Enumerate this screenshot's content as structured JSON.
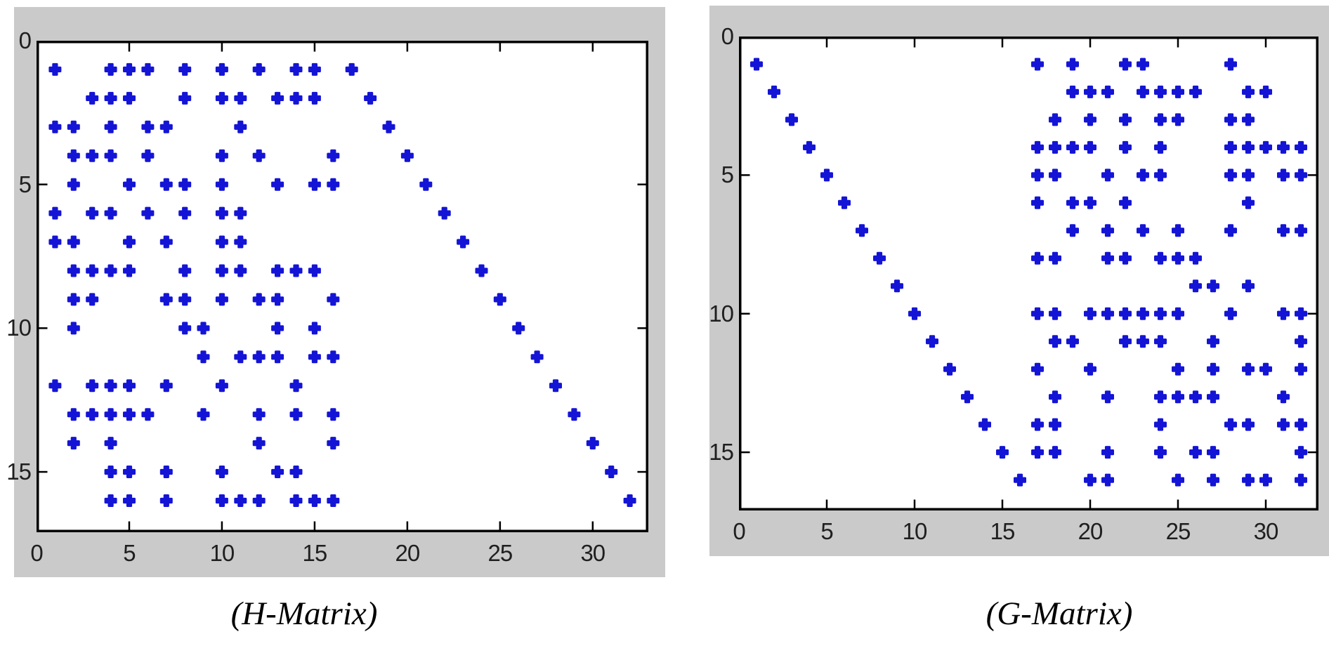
{
  "colors": {
    "marker": "#1414d6",
    "panel_background": "#cacaca",
    "plot_background": "#ffffff",
    "axis_line": "#000000",
    "tick_label": "#1f1f1f",
    "title": "#000000"
  },
  "titles": {
    "left": "(H-Matrix)",
    "right": "(G-Matrix)"
  },
  "chart_data": [
    {
      "type": "scatter",
      "title": "(H-Matrix)",
      "marker": "asterisk",
      "marker_color": "#1414d6",
      "xlabel": "",
      "ylabel": "",
      "xlim": [
        0,
        33
      ],
      "ylim": [
        0,
        17.1
      ],
      "y_axis_inverted": true,
      "grid": false,
      "legend": "none",
      "matrix_rows": 16,
      "matrix_cols": 32,
      "xticks": [
        0,
        5,
        10,
        15,
        20,
        25,
        30
      ],
      "yticks": [
        0,
        5,
        10,
        15
      ],
      "rows": [
        {
          "row": 1,
          "cols": [
            1,
            4,
            5,
            6,
            8,
            10,
            12,
            14,
            15,
            17
          ]
        },
        {
          "row": 2,
          "cols": [
            3,
            4,
            5,
            8,
            10,
            11,
            13,
            14,
            15,
            18
          ]
        },
        {
          "row": 3,
          "cols": [
            1,
            2,
            4,
            6,
            7,
            11,
            19
          ]
        },
        {
          "row": 4,
          "cols": [
            2,
            3,
            4,
            6,
            10,
            12,
            16,
            20
          ]
        },
        {
          "row": 5,
          "cols": [
            2,
            5,
            7,
            8,
            10,
            13,
            15,
            16,
            21
          ]
        },
        {
          "row": 6,
          "cols": [
            1,
            3,
            4,
            6,
            8,
            10,
            11,
            22
          ]
        },
        {
          "row": 7,
          "cols": [
            1,
            2,
            5,
            7,
            10,
            11,
            23
          ]
        },
        {
          "row": 8,
          "cols": [
            2,
            3,
            4,
            5,
            8,
            10,
            11,
            13,
            14,
            15,
            24
          ]
        },
        {
          "row": 9,
          "cols": [
            2,
            3,
            7,
            8,
            10,
            12,
            13,
            16,
            25
          ]
        },
        {
          "row": 10,
          "cols": [
            2,
            8,
            9,
            13,
            15,
            26
          ]
        },
        {
          "row": 11,
          "cols": [
            9,
            11,
            12,
            13,
            15,
            16,
            27
          ]
        },
        {
          "row": 12,
          "cols": [
            1,
            3,
            4,
            5,
            7,
            10,
            14,
            28
          ]
        },
        {
          "row": 13,
          "cols": [
            2,
            3,
            4,
            5,
            6,
            9,
            12,
            14,
            16,
            29
          ]
        },
        {
          "row": 14,
          "cols": [
            2,
            4,
            12,
            16,
            30
          ]
        },
        {
          "row": 15,
          "cols": [
            4,
            5,
            7,
            10,
            13,
            14,
            31
          ]
        },
        {
          "row": 16,
          "cols": [
            4,
            5,
            7,
            10,
            11,
            12,
            14,
            15,
            16,
            32
          ]
        }
      ]
    },
    {
      "type": "scatter",
      "title": "(G-Matrix)",
      "marker": "asterisk",
      "marker_color": "#1414d6",
      "xlabel": "",
      "ylabel": "",
      "xlim": [
        0,
        33
      ],
      "ylim": [
        0,
        17.1
      ],
      "y_axis_inverted": true,
      "grid": false,
      "legend": "none",
      "matrix_rows": 16,
      "matrix_cols": 32,
      "xticks": [
        0,
        5,
        10,
        15,
        20,
        25,
        30
      ],
      "yticks": [
        0,
        5,
        10,
        15
      ],
      "rows": [
        {
          "row": 1,
          "cols": [
            1,
            17,
            19,
            22,
            23,
            28
          ]
        },
        {
          "row": 2,
          "cols": [
            2,
            19,
            20,
            21,
            23,
            24,
            25,
            26,
            29,
            30
          ]
        },
        {
          "row": 3,
          "cols": [
            3,
            18,
            20,
            22,
            24,
            25,
            28,
            29
          ]
        },
        {
          "row": 4,
          "cols": [
            4,
            17,
            18,
            19,
            20,
            22,
            24,
            28,
            29,
            30,
            31,
            32
          ]
        },
        {
          "row": 5,
          "cols": [
            5,
            17,
            18,
            21,
            23,
            24,
            28,
            29,
            31,
            32
          ]
        },
        {
          "row": 6,
          "cols": [
            6,
            17,
            19,
            20,
            22,
            29
          ]
        },
        {
          "row": 7,
          "cols": [
            7,
            19,
            21,
            23,
            25,
            28,
            31,
            32
          ]
        },
        {
          "row": 8,
          "cols": [
            8,
            17,
            18,
            21,
            22,
            24,
            25,
            26
          ]
        },
        {
          "row": 9,
          "cols": [
            9,
            26,
            27,
            29
          ]
        },
        {
          "row": 10,
          "cols": [
            10,
            17,
            18,
            20,
            21,
            22,
            23,
            24,
            25,
            28,
            31,
            32
          ]
        },
        {
          "row": 11,
          "cols": [
            11,
            18,
            19,
            22,
            23,
            24,
            27,
            32
          ]
        },
        {
          "row": 12,
          "cols": [
            12,
            17,
            20,
            25,
            27,
            29,
            30,
            32
          ]
        },
        {
          "row": 13,
          "cols": [
            13,
            18,
            21,
            24,
            25,
            26,
            27,
            31
          ]
        },
        {
          "row": 14,
          "cols": [
            14,
            17,
            18,
            24,
            28,
            29,
            31,
            32
          ]
        },
        {
          "row": 15,
          "cols": [
            15,
            17,
            18,
            21,
            24,
            26,
            27,
            32
          ]
        },
        {
          "row": 16,
          "cols": [
            16,
            20,
            21,
            25,
            27,
            29,
            30,
            32
          ]
        }
      ]
    }
  ]
}
